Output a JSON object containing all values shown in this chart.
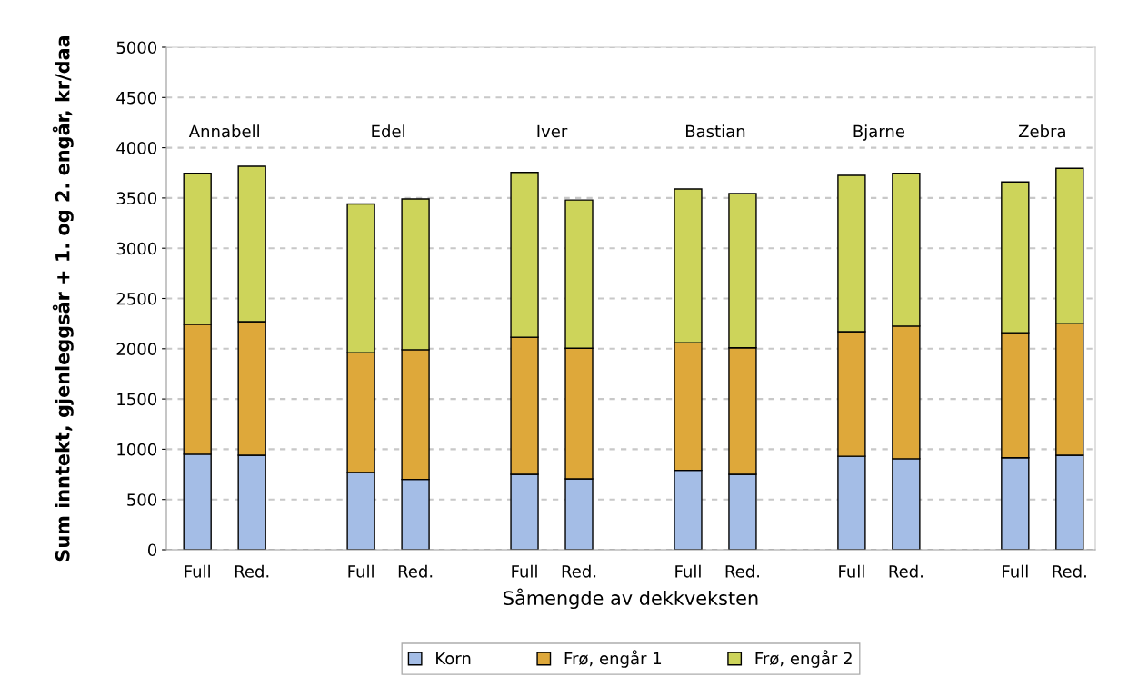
{
  "chart_data": {
    "type": "bar",
    "stacked": true,
    "xlabel": "Såmengde av dekkveksten",
    "ylabel": "Sum inntekt, gjenleggsår + 1. og 2. engår, kr/daa",
    "categories": [
      "Full",
      "Red.",
      null,
      "Full",
      "Red.",
      null,
      "Full",
      "Red.",
      null,
      "Full",
      "Red.",
      null,
      "Full",
      "Red.",
      null,
      "Full",
      "Red."
    ],
    "series": [
      {
        "name": "Korn",
        "color": "#a4bde6",
        "values": [
          950,
          940,
          null,
          770,
          700,
          null,
          750,
          705,
          null,
          790,
          750,
          null,
          930,
          905,
          null,
          915,
          940
        ]
      },
      {
        "name": "Frø, engår 1",
        "color": "#dea83a",
        "values": [
          1295,
          1330,
          null,
          1190,
          1290,
          null,
          1365,
          1300,
          null,
          1270,
          1260,
          null,
          1240,
          1320,
          null,
          1245,
          1310
        ]
      },
      {
        "name": "Frø, engår 2",
        "color": "#cdd45a",
        "values": [
          1500,
          1545,
          null,
          1480,
          1500,
          null,
          1640,
          1475,
          null,
          1530,
          1535,
          null,
          1555,
          1520,
          null,
          1500,
          1545
        ]
      }
    ],
    "annotations": [
      "Annabell",
      "Edel",
      "Iver",
      "Bastian",
      "Bjarne",
      "Zebra"
    ],
    "ylim": [
      0,
      5000
    ],
    "yticks": [
      0,
      500,
      1000,
      1500,
      2000,
      2500,
      3000,
      3500,
      4000,
      4500,
      5000
    ],
    "grid": "y",
    "legend": "bottom"
  }
}
